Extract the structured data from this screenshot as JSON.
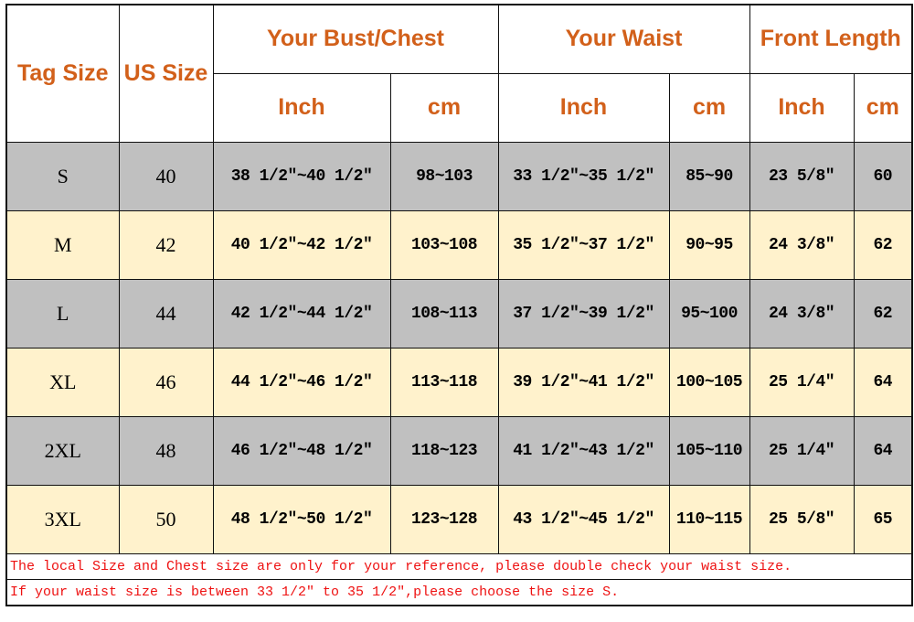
{
  "headers": {
    "tag_size": "Tag Size",
    "us_size": "US Size",
    "bust": "Your Bust/Chest",
    "waist": "Your Waist",
    "front_length": "Front Length",
    "inch": "Inch",
    "cm": "cm"
  },
  "colors": {
    "header_text": "#d2601a",
    "row_gray": "#c0c0c0",
    "row_cream": "#fff2cc",
    "note_text": "#ee1111"
  },
  "rows": [
    {
      "tag": "S",
      "us": "40",
      "bust_in": "38 1/2\"~40 1/2\"",
      "bust_cm": "98~103",
      "waist_in": "33 1/2\"~35 1/2\"",
      "waist_cm": "85~90",
      "len_in": "23 5/8\"",
      "len_cm": "60"
    },
    {
      "tag": "M",
      "us": "42",
      "bust_in": "40 1/2\"~42 1/2\"",
      "bust_cm": "103~108",
      "waist_in": "35 1/2\"~37 1/2\"",
      "waist_cm": "90~95",
      "len_in": "24 3/8\"",
      "len_cm": "62"
    },
    {
      "tag": "L",
      "us": "44",
      "bust_in": "42 1/2\"~44 1/2\"",
      "bust_cm": "108~113",
      "waist_in": "37 1/2\"~39 1/2\"",
      "waist_cm": "95~100",
      "len_in": "24 3/8\"",
      "len_cm": "62"
    },
    {
      "tag": "XL",
      "us": "46",
      "bust_in": "44 1/2\"~46 1/2\"",
      "bust_cm": "113~118",
      "waist_in": "39 1/2\"~41 1/2\"",
      "waist_cm": "100~105",
      "len_in": "25 1/4\"",
      "len_cm": "64"
    },
    {
      "tag": "2XL",
      "us": "48",
      "bust_in": "46 1/2\"~48 1/2\"",
      "bust_cm": "118~123",
      "waist_in": "41 1/2\"~43 1/2\"",
      "waist_cm": "105~110",
      "len_in": "25 1/4\"",
      "len_cm": "64"
    },
    {
      "tag": "3XL",
      "us": "50",
      "bust_in": "48 1/2\"~50 1/2\"",
      "bust_cm": "123~128",
      "waist_in": "43 1/2\"~45 1/2\"",
      "waist_cm": "110~115",
      "len_in": "25 5/8\"",
      "len_cm": "65"
    }
  ],
  "notes": [
    "The local Size and Chest size are only for your reference, please double check your waist size.",
    "If your waist size is between 33 1/2\" to 35 1/2\",please choose the size S."
  ]
}
